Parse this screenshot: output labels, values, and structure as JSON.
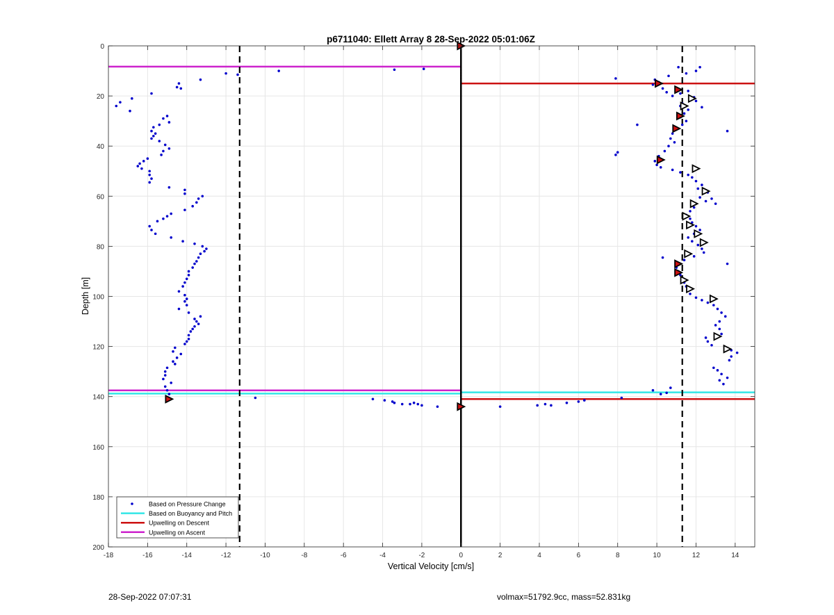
{
  "footer": {
    "left_text": "28-Sep-2022 07:07:31",
    "right_text": "volmax=51792.9cc, mass=52.831kg"
  },
  "chart_data": {
    "type": "scatter",
    "title": "p6711040: Ellett Array 8 28-Sep-2022 05:01:06Z",
    "xlabel": "Vertical Velocity [cm/s]",
    "ylabel": "Depth [m]",
    "xlim": [
      -18,
      15
    ],
    "ylim": [
      0,
      200
    ],
    "y_reversed": true,
    "grid": true,
    "x_ticks": [
      -18,
      -16,
      -14,
      -12,
      -10,
      -8,
      -6,
      -4,
      -2,
      0,
      2,
      4,
      6,
      8,
      10,
      12,
      14
    ],
    "y_ticks": [
      0,
      20,
      40,
      60,
      80,
      100,
      120,
      140,
      160,
      180,
      200
    ],
    "legend_position": "bottom-left",
    "legend": [
      {
        "label": "Based on Pressure Change",
        "color": "#0000cc",
        "kind": "dot"
      },
      {
        "label": "Based on Buoyancy and Pitch",
        "color": "#33e6e6",
        "kind": "line"
      },
      {
        "label": "Upwelling on Descent",
        "color": "#cc1111",
        "kind": "line"
      },
      {
        "label": "Upwelling on Ascent",
        "color": "#cc22cc",
        "kind": "line"
      }
    ],
    "dashed_vertical_lines": [
      -11.3,
      11.3
    ],
    "zero_line_x": 0,
    "ascent_points": [
      [
        -11.4,
        11.5
      ],
      [
        -12.0,
        11.0
      ],
      [
        -13.3,
        13.5
      ],
      [
        -14.4,
        15.0
      ],
      [
        -14.5,
        16.5
      ],
      [
        -14.3,
        17.0
      ],
      [
        -15.8,
        19.0
      ],
      [
        -16.8,
        21.0
      ],
      [
        -17.4,
        22.5
      ],
      [
        -17.6,
        24.0
      ],
      [
        -16.9,
        26.0
      ],
      [
        -15.0,
        28.0
      ],
      [
        -15.2,
        29.0
      ],
      [
        -14.9,
        30.5
      ],
      [
        -15.4,
        31.5
      ],
      [
        -15.7,
        32.5
      ],
      [
        -15.8,
        34.0
      ],
      [
        -15.6,
        35.0
      ],
      [
        -15.7,
        36.0
      ],
      [
        -15.8,
        37.0
      ],
      [
        -15.4,
        38.0
      ],
      [
        -15.1,
        39.5
      ],
      [
        -14.9,
        41.0
      ],
      [
        -15.2,
        42.0
      ],
      [
        -15.3,
        43.5
      ],
      [
        -16.0,
        45.0
      ],
      [
        -16.2,
        46.0
      ],
      [
        -16.4,
        47.0
      ],
      [
        -16.5,
        48.0
      ],
      [
        -16.3,
        49.0
      ],
      [
        -15.9,
        50.0
      ],
      [
        -15.9,
        51.5
      ],
      [
        -15.8,
        53.0
      ],
      [
        -15.9,
        54.5
      ],
      [
        -14.9,
        56.5
      ],
      [
        -14.1,
        57.5
      ],
      [
        -14.1,
        59.0
      ],
      [
        -13.2,
        60.0
      ],
      [
        -13.4,
        61.0
      ],
      [
        -13.5,
        62.5
      ],
      [
        -13.7,
        64.0
      ],
      [
        -14.1,
        65.5
      ],
      [
        -14.8,
        67.0
      ],
      [
        -15.0,
        68.0
      ],
      [
        -15.2,
        69.0
      ],
      [
        -15.5,
        70.0
      ],
      [
        -15.9,
        72.0
      ],
      [
        -15.8,
        73.5
      ],
      [
        -15.6,
        75.0
      ],
      [
        -14.8,
        76.5
      ],
      [
        -14.2,
        78.0
      ],
      [
        -13.6,
        79.0
      ],
      [
        -13.2,
        80.0
      ],
      [
        -13.0,
        81.0
      ],
      [
        -13.1,
        82.0
      ],
      [
        -13.3,
        83.0
      ],
      [
        -13.4,
        84.5
      ],
      [
        -13.5,
        86.0
      ],
      [
        -13.6,
        87.0
      ],
      [
        -13.7,
        88.5
      ],
      [
        -13.9,
        90.0
      ],
      [
        -13.9,
        91.5
      ],
      [
        -14.0,
        93.0
      ],
      [
        -14.1,
        94.5
      ],
      [
        -14.2,
        96.0
      ],
      [
        -14.4,
        98.0
      ],
      [
        -14.1,
        99.5
      ],
      [
        -14.0,
        101.0
      ],
      [
        -14.1,
        102.0
      ],
      [
        -14.0,
        103.5
      ],
      [
        -14.4,
        105.0
      ],
      [
        -13.9,
        106.5
      ],
      [
        -13.3,
        108.0
      ],
      [
        -13.6,
        109.0
      ],
      [
        -13.5,
        110.0
      ],
      [
        -13.4,
        111.0
      ],
      [
        -13.6,
        112.0
      ],
      [
        -13.7,
        113.0
      ],
      [
        -13.8,
        114.0
      ],
      [
        -13.9,
        115.5
      ],
      [
        -13.9,
        117.0
      ],
      [
        -14.0,
        118.0
      ],
      [
        -14.1,
        119.0
      ],
      [
        -14.6,
        120.5
      ],
      [
        -14.7,
        122.0
      ],
      [
        -14.3,
        123.0
      ],
      [
        -14.5,
        124.5
      ],
      [
        -14.7,
        126.0
      ],
      [
        -14.6,
        127.0
      ],
      [
        -15.0,
        128.5
      ],
      [
        -15.1,
        130.0
      ],
      [
        -15.1,
        131.5
      ],
      [
        -15.2,
        133.0
      ],
      [
        -14.8,
        134.5
      ],
      [
        -15.1,
        136.0
      ],
      [
        -15.0,
        137.5
      ],
      [
        -14.9,
        139.0
      ],
      [
        -15.0,
        140.5
      ],
      [
        -10.5,
        140.5
      ],
      [
        -9.3,
        10.0
      ],
      [
        -3.4,
        9.5
      ],
      [
        -1.9,
        9.2
      ],
      [
        -4.5,
        141.0
      ],
      [
        -3.9,
        141.5
      ],
      [
        -3.5,
        142.0
      ],
      [
        -3.4,
        142.5
      ],
      [
        -3.0,
        143.0
      ],
      [
        -2.6,
        143.0
      ],
      [
        -2.2,
        143.0
      ],
      [
        -2.0,
        143.5
      ],
      [
        -1.2,
        144.0
      ],
      [
        -2.4,
        142.5
      ]
    ],
    "descent_points": [
      [
        2.0,
        144.0
      ],
      [
        3.9,
        143.5
      ],
      [
        4.3,
        143.0
      ],
      [
        4.6,
        143.5
      ],
      [
        5.4,
        142.5
      ],
      [
        6.0,
        142.0
      ],
      [
        6.3,
        141.5
      ],
      [
        8.2,
        140.5
      ],
      [
        9.8,
        137.5
      ],
      [
        10.2,
        139.0
      ],
      [
        10.5,
        138.5
      ],
      [
        10.7,
        136.5
      ],
      [
        7.9,
        13.0
      ],
      [
        9.9,
        13.5
      ],
      [
        10.1,
        14.5
      ],
      [
        10.6,
        12.0
      ],
      [
        11.5,
        11.0
      ],
      [
        12.2,
        8.5
      ],
      [
        12.0,
        10.0
      ],
      [
        9.8,
        15.5
      ],
      [
        10.3,
        17.0
      ],
      [
        10.5,
        18.5
      ],
      [
        10.8,
        20.0
      ],
      [
        11.2,
        19.0
      ],
      [
        11.6,
        18.0
      ],
      [
        11.9,
        20.5
      ],
      [
        12.0,
        22.0
      ],
      [
        11.3,
        23.0
      ],
      [
        11.2,
        24.0
      ],
      [
        11.6,
        25.5
      ],
      [
        12.3,
        24.5
      ],
      [
        11.4,
        27.0
      ],
      [
        11.2,
        28.5
      ],
      [
        11.5,
        30.0
      ],
      [
        11.3,
        31.5
      ],
      [
        11.0,
        33.0
      ],
      [
        10.8,
        35.0
      ],
      [
        10.7,
        37.0
      ],
      [
        10.9,
        38.5
      ],
      [
        10.6,
        40.0
      ],
      [
        10.4,
        42.0
      ],
      [
        10.1,
        44.0
      ],
      [
        9.9,
        46.0
      ],
      [
        10.0,
        47.5
      ],
      [
        10.2,
        48.5
      ],
      [
        10.8,
        49.5
      ],
      [
        11.2,
        50.5
      ],
      [
        11.6,
        51.5
      ],
      [
        9.0,
        31.5
      ],
      [
        8.0,
        42.5
      ],
      [
        7.9,
        43.5
      ],
      [
        13.6,
        34.0
      ],
      [
        11.8,
        52.5
      ],
      [
        12.0,
        54.0
      ],
      [
        12.3,
        55.5
      ],
      [
        12.1,
        57.0
      ],
      [
        12.6,
        58.5
      ],
      [
        12.8,
        61.0
      ],
      [
        12.5,
        62.0
      ],
      [
        13.0,
        63.0
      ],
      [
        12.2,
        60.5
      ],
      [
        11.9,
        64.5
      ],
      [
        11.7,
        66.0
      ],
      [
        11.5,
        67.5
      ],
      [
        11.7,
        69.0
      ],
      [
        11.8,
        70.5
      ],
      [
        12.0,
        72.0
      ],
      [
        12.2,
        73.5
      ],
      [
        11.9,
        75.0
      ],
      [
        11.6,
        76.5
      ],
      [
        11.8,
        78.0
      ],
      [
        12.1,
        79.5
      ],
      [
        12.3,
        81.0
      ],
      [
        12.4,
        82.5
      ],
      [
        11.9,
        84.0
      ],
      [
        11.4,
        85.5
      ],
      [
        10.3,
        84.5
      ],
      [
        11.2,
        87.0
      ],
      [
        11.0,
        88.5
      ],
      [
        11.1,
        90.0
      ],
      [
        11.2,
        91.5
      ],
      [
        11.3,
        93.0
      ],
      [
        11.4,
        94.5
      ],
      [
        11.5,
        96.0
      ],
      [
        11.6,
        97.5
      ],
      [
        11.7,
        99.0
      ],
      [
        12.0,
        100.5
      ],
      [
        12.3,
        101.5
      ],
      [
        12.6,
        102.5
      ],
      [
        12.9,
        103.5
      ],
      [
        13.1,
        105.0
      ],
      [
        13.3,
        106.5
      ],
      [
        13.5,
        108.0
      ],
      [
        13.2,
        110.0
      ],
      [
        13.0,
        111.5
      ],
      [
        13.2,
        113.0
      ],
      [
        13.3,
        115.0
      ],
      [
        12.5,
        116.5
      ],
      [
        12.6,
        118.0
      ],
      [
        12.8,
        119.5
      ],
      [
        13.6,
        87.0
      ],
      [
        13.5,
        120.5
      ],
      [
        13.8,
        121.5
      ],
      [
        14.1,
        122.5
      ],
      [
        13.8,
        124.0
      ],
      [
        13.7,
        125.5
      ],
      [
        12.9,
        128.5
      ],
      [
        13.1,
        129.5
      ],
      [
        13.3,
        131.0
      ],
      [
        13.6,
        132.5
      ],
      [
        13.2,
        133.5
      ],
      [
        13.4,
        135.0
      ],
      [
        11.1,
        8.5
      ]
    ],
    "markers": [
      {
        "x": 0,
        "y": 0,
        "style": "filled-red"
      },
      {
        "x": 10.1,
        "y": 15.0,
        "style": "filled-red"
      },
      {
        "x": 11.1,
        "y": 17.5,
        "style": "filled-red"
      },
      {
        "x": 11.8,
        "y": 21.0,
        "style": "open"
      },
      {
        "x": 11.4,
        "y": 24.0,
        "style": "open"
      },
      {
        "x": 11.2,
        "y": 28.0,
        "style": "filled-red"
      },
      {
        "x": 11.0,
        "y": 33.0,
        "style": "filled-red"
      },
      {
        "x": 10.2,
        "y": 45.5,
        "style": "filled-red"
      },
      {
        "x": 12.0,
        "y": 49.0,
        "style": "open"
      },
      {
        "x": 12.5,
        "y": 58.0,
        "style": "open"
      },
      {
        "x": 11.9,
        "y": 63.0,
        "style": "open"
      },
      {
        "x": 11.5,
        "y": 68.0,
        "style": "open"
      },
      {
        "x": 11.7,
        "y": 71.5,
        "style": "open"
      },
      {
        "x": 12.1,
        "y": 75.0,
        "style": "open"
      },
      {
        "x": 12.4,
        "y": 78.5,
        "style": "open"
      },
      {
        "x": 11.6,
        "y": 83.0,
        "style": "open"
      },
      {
        "x": 11.1,
        "y": 87.0,
        "style": "filled-red"
      },
      {
        "x": 11.1,
        "y": 90.5,
        "style": "filled-red"
      },
      {
        "x": 11.4,
        "y": 93.5,
        "style": "open"
      },
      {
        "x": 11.7,
        "y": 97.0,
        "style": "open"
      },
      {
        "x": 12.9,
        "y": 101.0,
        "style": "open"
      },
      {
        "x": 13.1,
        "y": 116.0,
        "style": "open"
      },
      {
        "x": 13.6,
        "y": 121.0,
        "style": "open"
      },
      {
        "x": -14.9,
        "y": 141.0,
        "style": "filled-red"
      },
      {
        "x": 0,
        "y": 144.0,
        "style": "filled-red"
      }
    ],
    "horizontal_lines": [
      {
        "series": "Upwelling on Ascent",
        "x0": -18,
        "x1": 0,
        "y": 8.3,
        "color": "#cc22cc"
      },
      {
        "series": "Upwelling on Descent",
        "x0": 0,
        "x1": 15,
        "y": 15.0,
        "color": "#cc1111"
      },
      {
        "series": "Upwelling on Ascent",
        "x0": -18,
        "x1": 0,
        "y": 137.5,
        "color": "#cc22cc"
      },
      {
        "series": "Based on Buoyancy and Pitch",
        "x0": -18,
        "x1": 0,
        "y": 138.8,
        "color": "#33e6e6"
      },
      {
        "series": "Based on Buoyancy and Pitch",
        "x0": 0,
        "x1": 15,
        "y": 138.3,
        "color": "#33e6e6"
      },
      {
        "series": "Upwelling on Descent",
        "x0": 0,
        "x1": 15,
        "y": 141.0,
        "color": "#cc1111"
      }
    ],
    "vertical_segments": [
      {
        "x": 0,
        "y0": 8.3,
        "y1": 15.0,
        "color": "#cc1111"
      },
      {
        "x": 0,
        "y0": 137.5,
        "y1": 144.0,
        "color": "#cc22cc"
      }
    ]
  }
}
